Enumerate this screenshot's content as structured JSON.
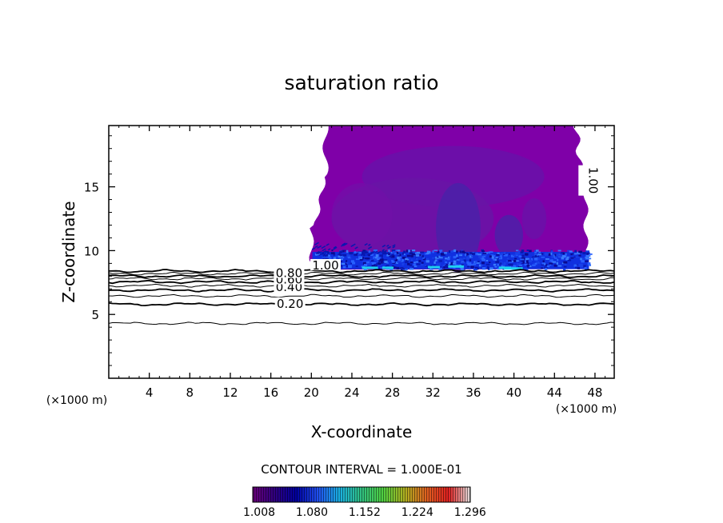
{
  "chart_data": {
    "type": "contour",
    "title": "saturation ratio",
    "xlabel": "X-coordinate",
    "ylabel": "Z-coordinate",
    "x_unit_left": "(×1000 m)",
    "x_unit_right": "(×1000 m)",
    "xlim": [
      0,
      49.9
    ],
    "ylim": [
      0,
      19.8
    ],
    "x_ticks": [
      4,
      8,
      12,
      16,
      20,
      24,
      28,
      32,
      36,
      40,
      44,
      48
    ],
    "x_tick_labels": [
      "4",
      "8",
      "12",
      "16",
      "20",
      "24",
      "28",
      "32",
      "36",
      "40",
      "44",
      "48"
    ],
    "y_ticks": [
      5,
      10,
      15
    ],
    "y_tick_labels": [
      "5",
      "10",
      "15"
    ],
    "contour_interval_text": "CONTOUR INTERVAL = 1.000E-01",
    "contour_levels": [
      0.1,
      0.2,
      0.3,
      0.4,
      0.5,
      0.6,
      0.7,
      0.8,
      0.9,
      1.0
    ],
    "contour_heights_km": [
      4.3,
      5.8,
      6.45,
      6.9,
      7.25,
      7.55,
      7.8,
      8.0,
      8.2,
      8.4
    ],
    "contour_labels": [
      {
        "text": "0.20",
        "x": 17.9,
        "z": 5.65
      },
      {
        "text": "0.40",
        "x": 17.8,
        "z": 6.95
      },
      {
        "text": "0.60",
        "x": 17.8,
        "z": 7.55
      },
      {
        "text": "0.80",
        "x": 17.8,
        "z": 8.05
      },
      {
        "text": "1.00",
        "x": 21.4,
        "z": 8.65
      },
      {
        "text": "1.00",
        "x": 47.0,
        "z": 15.5
      }
    ],
    "supersaturated_region": {
      "x_start": 19.8,
      "x_end": 47.4,
      "z_bottom": 8.5,
      "z_top": 19.8
    },
    "colorbar": {
      "tick_labels": [
        "1.008",
        "1.080",
        "1.152",
        "1.224",
        "1.296"
      ],
      "min": 1.008,
      "max": 1.305,
      "colors": [
        "#6a007a",
        "#300080",
        "#0000a0",
        "#2050f0",
        "#1ab0e0",
        "#30c080",
        "#50d040",
        "#b0b020",
        "#e06020",
        "#e02020",
        "#e0e0e0"
      ]
    }
  }
}
